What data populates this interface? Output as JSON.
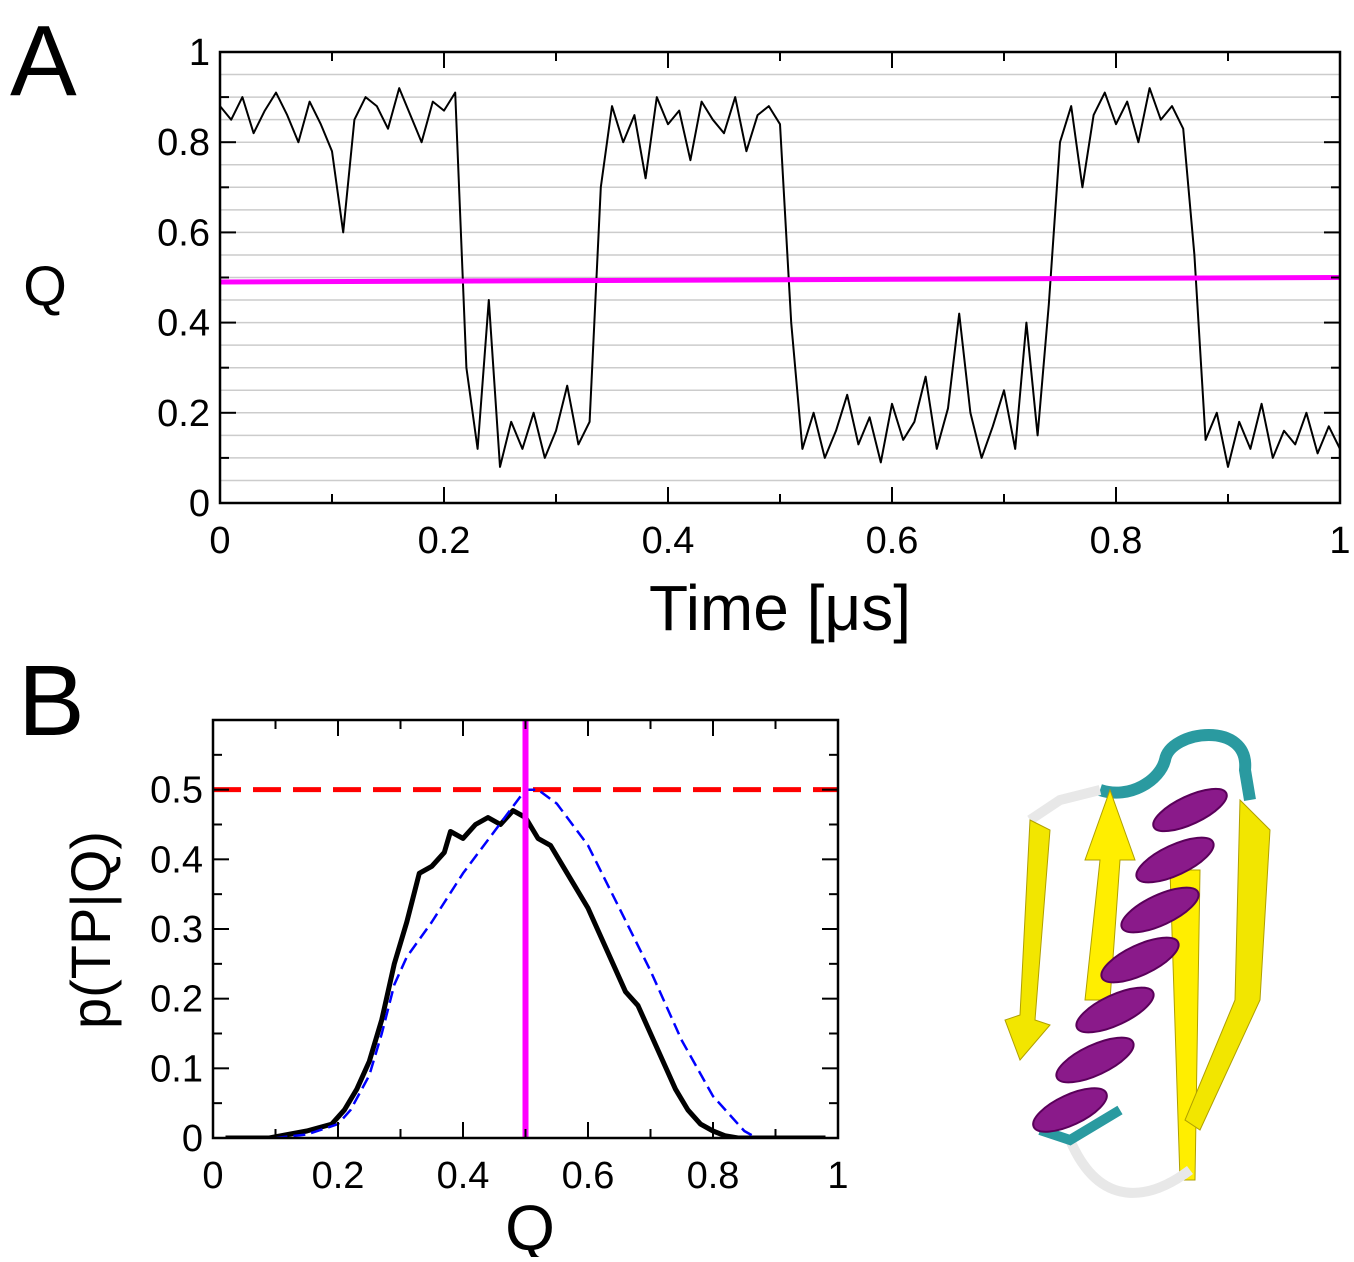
{
  "chart_data": [
    {
      "type": "line",
      "panel_label": "A",
      "x_label": "Time [μs]",
      "y_label": "Q",
      "xlim": [
        0,
        1
      ],
      "ylim": [
        0,
        1
      ],
      "xticks": [
        0,
        0.2,
        0.4,
        0.6,
        0.8,
        1
      ],
      "yticks": [
        0,
        0.2,
        0.4,
        0.6,
        0.8,
        1
      ],
      "xminor": [
        0.1,
        0.3,
        0.5,
        0.7,
        0.9
      ],
      "yminor": [
        0.1,
        0.3,
        0.5,
        0.7,
        0.9
      ],
      "ygrid": [
        0.05,
        0.1,
        0.15,
        0.2,
        0.25,
        0.3,
        0.35,
        0.4,
        0.45,
        0.5,
        0.55,
        0.6,
        0.65,
        0.7,
        0.75,
        0.8,
        0.85,
        0.9,
        0.95
      ],
      "series": [
        {
          "color": "#000000",
          "width": 2,
          "x": [
            0,
            0.01,
            0.02,
            0.03,
            0.04,
            0.05,
            0.06,
            0.07,
            0.08,
            0.09,
            0.1,
            0.11,
            0.12,
            0.13,
            0.14,
            0.15,
            0.16,
            0.17,
            0.18,
            0.19,
            0.2,
            0.21,
            0.22,
            0.23,
            0.24,
            0.25,
            0.26,
            0.27,
            0.28,
            0.29,
            0.3,
            0.31,
            0.32,
            0.33,
            0.34,
            0.35,
            0.36,
            0.37,
            0.38,
            0.39,
            0.4,
            0.41,
            0.42,
            0.43,
            0.44,
            0.45,
            0.46,
            0.47,
            0.48,
            0.49,
            0.5,
            0.51,
            0.52,
            0.53,
            0.54,
            0.55,
            0.56,
            0.57,
            0.58,
            0.59,
            0.6,
            0.61,
            0.62,
            0.63,
            0.64,
            0.65,
            0.66,
            0.67,
            0.68,
            0.69,
            0.7,
            0.71,
            0.72,
            0.73,
            0.74,
            0.75,
            0.76,
            0.77,
            0.78,
            0.79,
            0.8,
            0.81,
            0.82,
            0.83,
            0.84,
            0.85,
            0.86,
            0.87,
            0.88,
            0.89,
            0.9,
            0.91,
            0.92,
            0.93,
            0.94,
            0.95,
            0.96,
            0.97,
            0.98,
            0.99,
            1
          ],
          "values": [
            0.88,
            0.85,
            0.9,
            0.82,
            0.87,
            0.91,
            0.86,
            0.8,
            0.89,
            0.84,
            0.78,
            0.6,
            0.85,
            0.9,
            0.88,
            0.83,
            0.92,
            0.86,
            0.8,
            0.89,
            0.87,
            0.91,
            0.3,
            0.12,
            0.45,
            0.08,
            0.18,
            0.12,
            0.2,
            0.1,
            0.16,
            0.26,
            0.13,
            0.18,
            0.7,
            0.88,
            0.8,
            0.86,
            0.72,
            0.9,
            0.84,
            0.87,
            0.76,
            0.89,
            0.85,
            0.82,
            0.9,
            0.78,
            0.86,
            0.88,
            0.84,
            0.4,
            0.12,
            0.2,
            0.1,
            0.16,
            0.24,
            0.13,
            0.19,
            0.09,
            0.22,
            0.14,
            0.18,
            0.28,
            0.12,
            0.21,
            0.42,
            0.2,
            0.1,
            0.17,
            0.25,
            0.12,
            0.4,
            0.15,
            0.44,
            0.8,
            0.88,
            0.7,
            0.86,
            0.91,
            0.84,
            0.89,
            0.8,
            0.92,
            0.85,
            0.88,
            0.83,
            0.55,
            0.14,
            0.2,
            0.08,
            0.18,
            0.12,
            0.22,
            0.1,
            0.16,
            0.13,
            0.2,
            0.11,
            0.17,
            0.12
          ]
        },
        {
          "color": "#ff00ff",
          "width": 5,
          "x": [
            0,
            1
          ],
          "values": [
            0.49,
            0.5
          ]
        }
      ]
    },
    {
      "type": "line",
      "panel_label": "B",
      "x_label": "Q",
      "y_label": "p(TP|Q)",
      "xlim": [
        0,
        1
      ],
      "ylim": [
        0,
        0.6
      ],
      "xticks": [
        0,
        0.2,
        0.4,
        0.6,
        0.8,
        1
      ],
      "yticks": [
        0,
        0.1,
        0.2,
        0.3,
        0.4,
        0.5
      ],
      "xminor": [
        0.1,
        0.3,
        0.5,
        0.7,
        0.9
      ],
      "yminor": [
        0.05,
        0.15,
        0.25,
        0.35,
        0.45,
        0.55
      ],
      "hline": {
        "value": 0.5,
        "color": "#ff0000"
      },
      "vline": {
        "value": 0.5,
        "color": "#ff00ff"
      },
      "series": [
        {
          "color": "#000000",
          "width": 5,
          "x": [
            0.02,
            0.09,
            0.12,
            0.15,
            0.19,
            0.21,
            0.23,
            0.25,
            0.27,
            0.29,
            0.31,
            0.33,
            0.35,
            0.37,
            0.38,
            0.4,
            0.42,
            0.44,
            0.46,
            0.48,
            0.5,
            0.52,
            0.54,
            0.56,
            0.58,
            0.6,
            0.62,
            0.64,
            0.66,
            0.68,
            0.7,
            0.72,
            0.74,
            0.76,
            0.78,
            0.8,
            0.82,
            0.84,
            0.98
          ],
          "values": [
            0,
            0,
            0.005,
            0.01,
            0.02,
            0.04,
            0.07,
            0.11,
            0.17,
            0.25,
            0.31,
            0.38,
            0.39,
            0.41,
            0.44,
            0.43,
            0.45,
            0.46,
            0.45,
            0.47,
            0.46,
            0.43,
            0.42,
            0.39,
            0.36,
            0.33,
            0.29,
            0.25,
            0.21,
            0.19,
            0.15,
            0.11,
            0.07,
            0.04,
            0.02,
            0.01,
            0.003,
            0,
            0
          ]
        },
        {
          "color": "#0000ff",
          "width": 2.5,
          "dash": true,
          "x": [
            0.1,
            0.15,
            0.2,
            0.22,
            0.25,
            0.27,
            0.29,
            0.31,
            0.35,
            0.4,
            0.45,
            0.5,
            0.52,
            0.55,
            0.6,
            0.65,
            0.7,
            0.75,
            0.8,
            0.85,
            0.87
          ],
          "values": [
            0,
            0.005,
            0.02,
            0.04,
            0.09,
            0.15,
            0.22,
            0.26,
            0.31,
            0.38,
            0.44,
            0.5,
            0.5,
            0.48,
            0.42,
            0.33,
            0.24,
            0.14,
            0.06,
            0.01,
            0
          ]
        }
      ]
    }
  ]
}
